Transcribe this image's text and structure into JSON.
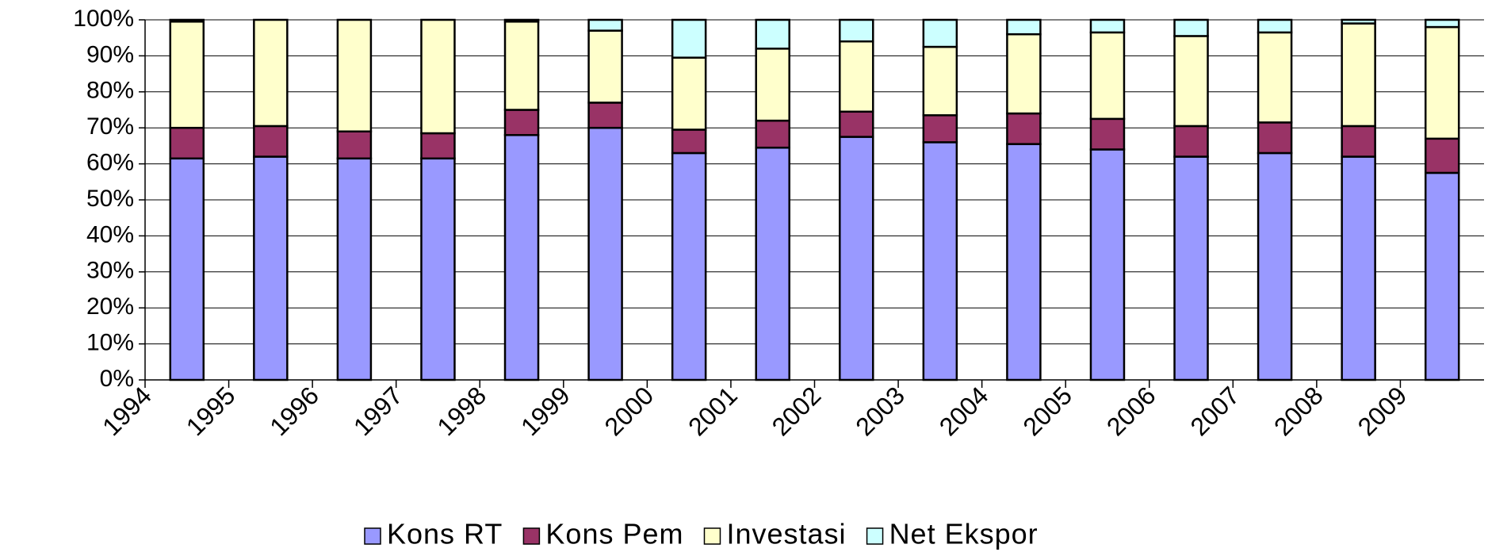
{
  "chart_data": {
    "type": "stacked_bar",
    "categories": [
      "1994",
      "1995",
      "1996",
      "1997",
      "1998",
      "1999",
      "2000",
      "2001",
      "2002",
      "2003",
      "2004",
      "2005",
      "2006",
      "2007",
      "2008",
      "2009"
    ],
    "series": [
      {
        "name": "Kons RT",
        "color": "#9999ff",
        "values": [
          61.5,
          62,
          61.5,
          61.5,
          68,
          70,
          63,
          64.5,
          67.5,
          66,
          65.5,
          64,
          62,
          63,
          62,
          57.5
        ]
      },
      {
        "name": "Kons Pem",
        "color": "#993366",
        "values": [
          8.5,
          8.5,
          7.5,
          7,
          7,
          7,
          6.5,
          7.5,
          7,
          7.5,
          8.5,
          8.5,
          8.5,
          8.5,
          8.5,
          9.5
        ]
      },
      {
        "name": "Investasi",
        "color": "#ffffcc",
        "values": [
          29.5,
          29.5,
          31,
          31.5,
          24.5,
          20,
          20,
          20,
          19.5,
          19,
          22,
          24,
          25,
          25,
          28.5,
          31
        ]
      },
      {
        "name": "Net Ekspor",
        "color": "#ccffff",
        "values": [
          0.5,
          0,
          0,
          0,
          0.5,
          3,
          10.5,
          8,
          6,
          7.5,
          4,
          3.5,
          4.5,
          3.5,
          1,
          2
        ]
      }
    ],
    "ylim": [
      0,
      100
    ],
    "yticks": [
      {
        "value": 0,
        "label": "0%"
      },
      {
        "value": 10,
        "label": "10%"
      },
      {
        "value": 20,
        "label": "20%"
      },
      {
        "value": 30,
        "label": "30%"
      },
      {
        "value": 40,
        "label": "40%"
      },
      {
        "value": 50,
        "label": "50%"
      },
      {
        "value": 60,
        "label": "60%"
      },
      {
        "value": 70,
        "label": "70%"
      },
      {
        "value": 80,
        "label": "80%"
      },
      {
        "value": 90,
        "label": "90%"
      },
      {
        "value": 100,
        "label": "100%"
      }
    ],
    "grid": true,
    "legend": "bottom"
  }
}
